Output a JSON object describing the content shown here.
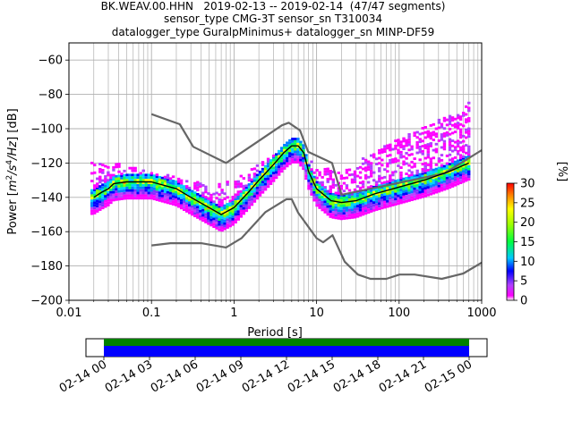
{
  "title_lines": [
    "BK.WEAV.00.HHN   2019-02-13 -- 2019-02-14  (47/47 segments)",
    "sensor_type CMG-3T sensor_sn T310034",
    "datalogger_type GuralpMinimus+ datalogger_sn MINP-DF59"
  ],
  "chart_data": {
    "type": "heatmap",
    "xlabel": "Period [s]",
    "ylabel_parts": [
      "Power [",
      "m",
      "2",
      "/s",
      "4",
      "/Hz",
      "] [dB]"
    ],
    "xscale": "log",
    "xlim": [
      0.01,
      1000
    ],
    "ylim": [
      -200,
      -50
    ],
    "xticks": [
      {
        "value": 0.01,
        "label": "0.01"
      },
      {
        "value": 0.1,
        "label": "0.1"
      },
      {
        "value": 1,
        "label": "1"
      },
      {
        "value": 10,
        "label": "10"
      },
      {
        "value": 100,
        "label": "100"
      },
      {
        "value": 1000,
        "label": "1000"
      }
    ],
    "yticks": [
      {
        "value": -60,
        "label": "−60"
      },
      {
        "value": -80,
        "label": "−80"
      },
      {
        "value": -100,
        "label": "−100"
      },
      {
        "value": -120,
        "label": "−120"
      },
      {
        "value": -140,
        "label": "−140"
      },
      {
        "value": -160,
        "label": "−160"
      },
      {
        "value": -180,
        "label": "−180"
      },
      {
        "value": -200,
        "label": "−200"
      }
    ],
    "grid": true,
    "nhnm": {
      "x": [
        0.1,
        0.22,
        0.32,
        0.8,
        3.8,
        4.6,
        6.3,
        7.9,
        15.4,
        20,
        354.8,
        1000
      ],
      "y": [
        -91.5,
        -97.4,
        -110.5,
        -120,
        -98,
        -96.5,
        -101,
        -113.5,
        -120,
        -138.5,
        -126,
        -112.5
      ]
    },
    "nlnm": {
      "x": [
        0.1,
        0.17,
        0.4,
        0.8,
        1.24,
        2.4,
        4.3,
        5,
        6,
        10,
        12,
        15.6,
        21.9,
        31.6,
        45,
        70,
        101,
        154,
        328,
        600,
        1000
      ],
      "y": [
        -168,
        -166.7,
        -166.7,
        -169.2,
        -163.7,
        -148.6,
        -141.1,
        -141.1,
        -149,
        -163.8,
        -166.2,
        -162.1,
        -177.5,
        -185,
        -187.5,
        -187.5,
        -185,
        -185,
        -187.5,
        -184.4,
        -178
      ]
    },
    "mean": {
      "x": [
        0.02,
        0.025,
        0.03,
        0.035,
        0.05,
        0.1,
        0.2,
        0.3,
        0.5,
        0.7,
        1,
        1.5,
        2,
        3,
        4,
        5,
        6,
        7,
        8,
        10,
        15,
        20,
        30,
        50,
        100,
        200,
        400,
        700
      ],
      "y": [
        -140,
        -137,
        -135,
        -132,
        -131,
        -131,
        -135,
        -140,
        -146,
        -150,
        -146,
        -137,
        -130,
        -121,
        -114,
        -110,
        -110,
        -114,
        -125,
        -135,
        -142,
        -143,
        -142,
        -138,
        -134,
        -130,
        -125,
        -120
      ]
    },
    "spread_upper": {
      "x": [
        0.04,
        0.1,
        0.3,
        0.5,
        1,
        5,
        10,
        20,
        50,
        100,
        200,
        400,
        700
      ],
      "y": [
        -120,
        -125,
        -130,
        -132,
        -130,
        -108,
        -122,
        -125,
        -113,
        -106,
        -99,
        -92,
        -85
      ]
    },
    "colorbar": {
      "label": "[%]",
      "range": [
        0,
        30
      ],
      "ticks": [
        {
          "value": 0,
          "label": "0"
        },
        {
          "value": 5,
          "label": "5"
        },
        {
          "value": 10,
          "label": "10"
        },
        {
          "value": 15,
          "label": "15"
        },
        {
          "value": 20,
          "label": "20"
        },
        {
          "value": 25,
          "label": "25"
        },
        {
          "value": 30,
          "label": "30"
        }
      ]
    },
    "timeline": {
      "start": "2019-02-14 00:00",
      "end": "2019-02-15 00:00",
      "ticks": [
        {
          "hour": 0,
          "label": "02-14 00"
        },
        {
          "hour": 3,
          "label": "02-14 03"
        },
        {
          "hour": 6,
          "label": "02-14 06"
        },
        {
          "hour": 9,
          "label": "02-14 09"
        },
        {
          "hour": 12,
          "label": "02-14 12"
        },
        {
          "hour": 15,
          "label": "02-14 15"
        },
        {
          "hour": 18,
          "label": "02-14 18"
        },
        {
          "hour": 21,
          "label": "02-14 21"
        },
        {
          "hour": 24,
          "label": "02-15 00"
        }
      ]
    },
    "colors": {
      "nm": "#666666",
      "mean": "#000000",
      "data_used": "#008000",
      "data_available": "#0000ff"
    }
  }
}
